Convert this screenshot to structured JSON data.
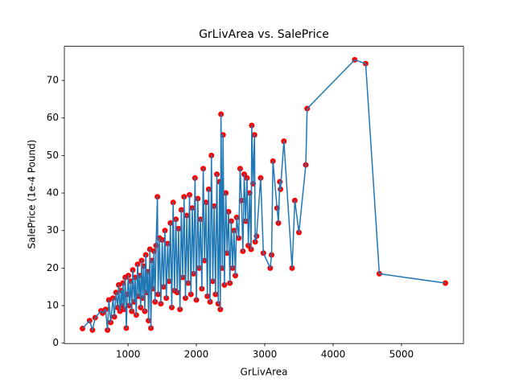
{
  "chart_data": {
    "type": "line",
    "title": "GrLivArea vs. SalePrice",
    "x_label": "GrLivArea",
    "y_label": "SalePrice (1e-4 Pound)",
    "series": [
      {
        "color": "#1f77b4",
        "marker_color": "#ff0000",
        "x": [
          334,
          438,
          480,
          520,
          605,
          630,
          672,
          700,
          720,
          747,
          780,
          800,
          825,
          848,
          864,
          882,
          900,
          912,
          925,
          940,
          960,
          975,
          990,
          1005,
          1020,
          1040,
          1055,
          1070,
          1090,
          1105,
          1120,
          1140,
          1155,
          1170,
          1185,
          1200,
          1215,
          1230,
          1245,
          1260,
          1275,
          1290,
          1300,
          1320,
          1335,
          1350,
          1365,
          1380,
          1395,
          1410,
          1430,
          1440,
          1460,
          1480,
          1500,
          1520,
          1540,
          1560,
          1580,
          1600,
          1620,
          1640,
          1660,
          1680,
          1700,
          1720,
          1740,
          1760,
          1780,
          1800,
          1820,
          1840,
          1860,
          1880,
          1900,
          1920,
          1940,
          1960,
          1980,
          2000,
          2020,
          2040,
          2060,
          2080,
          2100,
          2120,
          2140,
          2160,
          2180,
          2200,
          2220,
          2240,
          2260,
          2280,
          2300,
          2320,
          2340,
          2350,
          2360,
          2380,
          2390,
          2410,
          2430,
          2450,
          2470,
          2490,
          2510,
          2530,
          2550,
          2570,
          2590,
          2620,
          2640,
          2660,
          2680,
          2700,
          2720,
          2740,
          2760,
          2780,
          2800,
          2810,
          2830,
          2850,
          2860,
          2880,
          2940,
          2980,
          3080,
          3100,
          3120,
          3180,
          3200,
          3220,
          3230,
          3280,
          3400,
          3440,
          3500,
          3600,
          3620,
          4316,
          4476,
          4676,
          5642
        ],
        "values": [
          3.9,
          6.0,
          3.5,
          6.8,
          8.6,
          8.0,
          9.0,
          3.5,
          11.5,
          5.5,
          12.0,
          7.0,
          13.5,
          9.5,
          15.5,
          8.5,
          14.0,
          10.0,
          16.0,
          9.0,
          17.5,
          4.0,
          13.0,
          18.0,
          10.0,
          16.5,
          8.5,
          19.5,
          11.0,
          17.5,
          7.5,
          21.0,
          12.5,
          18.0,
          9.5,
          22.0,
          12.0,
          20.5,
          8.5,
          23.5,
          13.5,
          19.0,
          6.0,
          25.0,
          4.0,
          22.0,
          14.5,
          24.5,
          11.0,
          26.0,
          39.0,
          13.0,
          28.0,
          10.5,
          27.5,
          15.0,
          30.0,
          12.0,
          26.5,
          16.5,
          32.0,
          9.5,
          37.5,
          14.0,
          33.0,
          13.5,
          30.5,
          9.0,
          35.5,
          17.5,
          39.0,
          12.0,
          34.0,
          16.0,
          39.5,
          13.0,
          36.0,
          18.5,
          44.0,
          11.5,
          38.5,
          20.0,
          33.0,
          14.5,
          46.5,
          22.0,
          37.5,
          12.5,
          41.0,
          11.0,
          50.0,
          16.5,
          36.5,
          13.0,
          45.0,
          10.5,
          43.0,
          9.0,
          61.0,
          20.0,
          55.5,
          15.5,
          40.0,
          24.0,
          35.0,
          16.0,
          32.5,
          20.0,
          30.0,
          18.0,
          33.5,
          28.0,
          46.5,
          38.0,
          24.5,
          45.0,
          32.5,
          44.0,
          26.0,
          40.0,
          25.0,
          58.0,
          42.5,
          55.5,
          27.0,
          28.5,
          44.0,
          24.0,
          20.0,
          23.5,
          48.5,
          36.0,
          32.0,
          43.0,
          41.0,
          53.8,
          20.0,
          38.0,
          29.5,
          47.5,
          62.5,
          75.5,
          74.5,
          18.5,
          16.0
        ]
      }
    ],
    "xlim": [
      69,
      5907
    ],
    "ylim": [
      -0.11,
      79.1
    ],
    "xticks": [
      1000,
      2000,
      3000,
      4000,
      5000
    ],
    "yticks": [
      0,
      10,
      20,
      30,
      40,
      50,
      60,
      70
    ]
  }
}
